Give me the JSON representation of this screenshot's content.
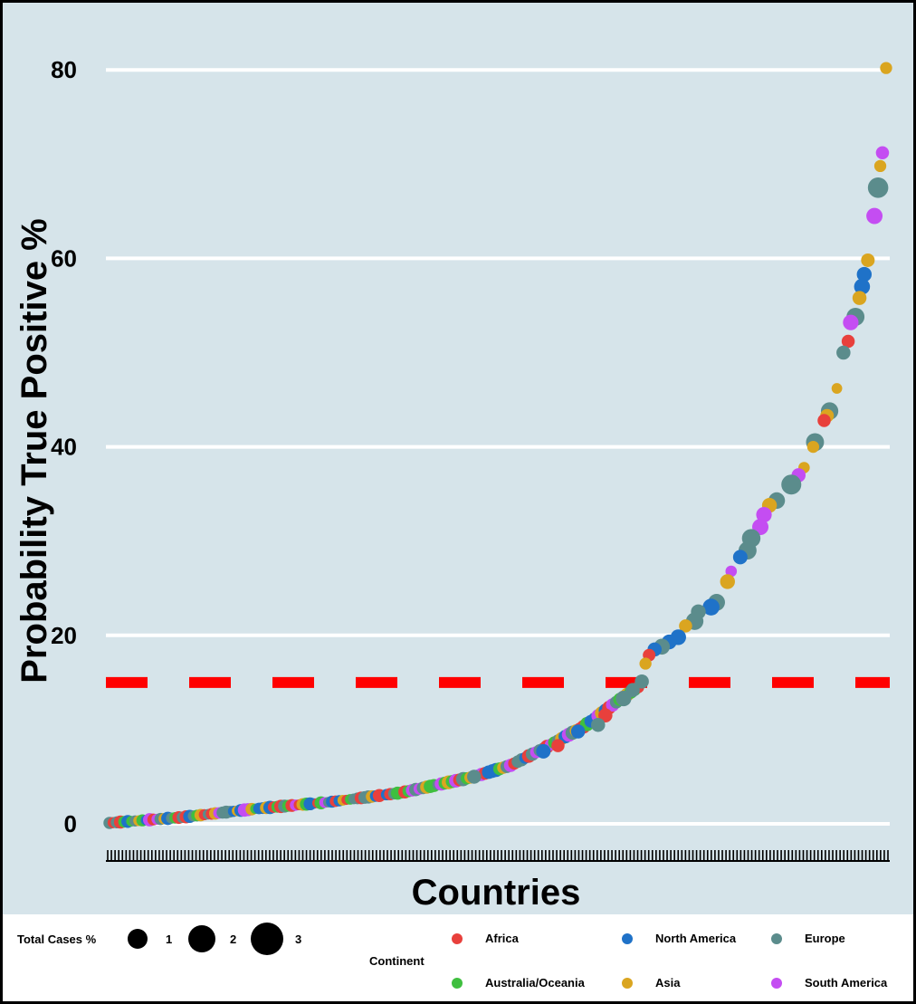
{
  "chart_data": {
    "type": "scatter",
    "title": "",
    "xlabel": "Countries",
    "ylabel": "Probability True Positive %",
    "ylim": [
      -3,
      85
    ],
    "yticks": [
      0,
      20,
      40,
      60,
      80
    ],
    "grid": true,
    "x_tick_labels_visible": false,
    "reference_line": {
      "y": 15,
      "color": "#ff0000",
      "style": "dashed"
    },
    "size_legend": {
      "title": "Total Cases %",
      "values": [
        1,
        2,
        3
      ]
    },
    "color_legend": {
      "title": "Continent",
      "entries": [
        {
          "name": "Africa",
          "color": "#e8403c"
        },
        {
          "name": "North America",
          "color": "#1f72c8"
        },
        {
          "name": "Europe",
          "color": "#5b8c8c"
        },
        {
          "name": "Australia/Oceania",
          "color": "#3fbf3f"
        },
        {
          "name": "Asia",
          "color": "#daa520"
        },
        {
          "name": "South America",
          "color": "#c44df2"
        }
      ]
    },
    "curve_control_points": [
      [
        0,
        0.1
      ],
      [
        20,
        0.7
      ],
      [
        40,
        1.6
      ],
      [
        60,
        2.3
      ],
      [
        80,
        3.3
      ],
      [
        100,
        5.0
      ],
      [
        110,
        6.2
      ],
      [
        120,
        8.2
      ],
      [
        130,
        10.3
      ],
      [
        140,
        13.2
      ],
      [
        145,
        14.5
      ],
      [
        150,
        17.5
      ],
      [
        155,
        18.6
      ],
      [
        160,
        19.4
      ],
      [
        165,
        21.0
      ],
      [
        170,
        23.0
      ],
      [
        175,
        26.5
      ],
      [
        180,
        30.5
      ],
      [
        185,
        34.0
      ],
      [
        190,
        36.5
      ],
      [
        195,
        40.5
      ],
      [
        198,
        44.0
      ],
      [
        200,
        50.0
      ],
      [
        203,
        53.5
      ],
      [
        206,
        56.5
      ],
      [
        208,
        60.0
      ],
      [
        210,
        64.5
      ],
      [
        211,
        68.0
      ],
      [
        212,
        71.0
      ],
      [
        213,
        80.2
      ]
    ],
    "highlighted_points": [
      {
        "x": 213,
        "y": 80.2,
        "continent": "Asia",
        "size": 0.4
      },
      {
        "x": 212,
        "y": 71.2,
        "continent": "South America",
        "size": 0.6
      },
      {
        "x": 211.4,
        "y": 69.8,
        "continent": "Asia",
        "size": 0.4
      },
      {
        "x": 210.8,
        "y": 67.5,
        "continent": "Europe",
        "size": 3.0
      },
      {
        "x": 209.8,
        "y": 64.5,
        "continent": "South America",
        "size": 1.4
      },
      {
        "x": 208,
        "y": 59.8,
        "continent": "Asia",
        "size": 0.7
      },
      {
        "x": 207,
        "y": 58.3,
        "continent": "North America",
        "size": 1.0
      },
      {
        "x": 206.4,
        "y": 57.0,
        "continent": "North America",
        "size": 1.3
      },
      {
        "x": 205.7,
        "y": 55.8,
        "continent": "Asia",
        "size": 0.8
      },
      {
        "x": 204.6,
        "y": 53.8,
        "continent": "Europe",
        "size": 2.0
      },
      {
        "x": 203.3,
        "y": 53.2,
        "continent": "South America",
        "size": 1.2
      },
      {
        "x": 202.6,
        "y": 51.2,
        "continent": "Africa",
        "size": 0.6
      },
      {
        "x": 201.3,
        "y": 50.0,
        "continent": "Europe",
        "size": 0.8
      },
      {
        "x": 199.5,
        "y": 46.2,
        "continent": "Asia",
        "size": 0.2
      },
      {
        "x": 197.5,
        "y": 43.8,
        "continent": "Europe",
        "size": 1.8
      },
      {
        "x": 196.8,
        "y": 43.3,
        "continent": "Asia",
        "size": 0.7
      },
      {
        "x": 196.0,
        "y": 42.8,
        "continent": "Africa",
        "size": 0.6
      },
      {
        "x": 193.5,
        "y": 40.5,
        "continent": "Europe",
        "size": 2.0
      },
      {
        "x": 193.0,
        "y": 40.0,
        "continent": "Asia",
        "size": 0.4
      },
      {
        "x": 190.5,
        "y": 37.8,
        "continent": "Asia",
        "size": 0.3
      },
      {
        "x": 189.0,
        "y": 37.0,
        "continent": "South America",
        "size": 0.8
      },
      {
        "x": 187.0,
        "y": 36.0,
        "continent": "Europe",
        "size": 2.8
      },
      {
        "x": 183.0,
        "y": 34.3,
        "continent": "Europe",
        "size": 1.5
      },
      {
        "x": 181.0,
        "y": 33.8,
        "continent": "Asia",
        "size": 1.0
      },
      {
        "x": 179.5,
        "y": 32.8,
        "continent": "South America",
        "size": 1.2
      },
      {
        "x": 178.5,
        "y": 31.5,
        "continent": "South America",
        "size": 1.4
      },
      {
        "x": 176.0,
        "y": 30.3,
        "continent": "Europe",
        "size": 2.2
      },
      {
        "x": 175.0,
        "y": 29.0,
        "continent": "Europe",
        "size": 2.0
      },
      {
        "x": 173.0,
        "y": 28.3,
        "continent": "North America",
        "size": 0.9
      },
      {
        "x": 170.5,
        "y": 26.8,
        "continent": "South America",
        "size": 0.3
      },
      {
        "x": 169.5,
        "y": 25.7,
        "continent": "Asia",
        "size": 1.0
      },
      {
        "x": 166.5,
        "y": 23.5,
        "continent": "Europe",
        "size": 1.6
      },
      {
        "x": 165.0,
        "y": 23.0,
        "continent": "North America",
        "size": 1.6
      },
      {
        "x": 161.5,
        "y": 22.5,
        "continent": "Europe",
        "size": 1.0
      },
      {
        "x": 160.5,
        "y": 21.5,
        "continent": "Europe",
        "size": 1.8
      },
      {
        "x": 158.0,
        "y": 21.0,
        "continent": "Asia",
        "size": 0.6
      },
      {
        "x": 156.0,
        "y": 19.8,
        "continent": "North America",
        "size": 1.2
      },
      {
        "x": 153.5,
        "y": 19.3,
        "continent": "North America",
        "size": 1.0
      },
      {
        "x": 151.5,
        "y": 18.8,
        "continent": "Europe",
        "size": 1.3
      },
      {
        "x": 149.5,
        "y": 18.5,
        "continent": "North America",
        "size": 0.8
      },
      {
        "x": 148.0,
        "y": 17.9,
        "continent": "Africa",
        "size": 0.5
      },
      {
        "x": 147.0,
        "y": 17.0,
        "continent": "Asia",
        "size": 0.4
      },
      {
        "x": 143.5,
        "y": 14.2,
        "continent": "Europe",
        "size": 0.8
      },
      {
        "x": 141.0,
        "y": 13.3,
        "continent": "Europe",
        "size": 1.2
      },
      {
        "x": 136.0,
        "y": 11.5,
        "continent": "Africa",
        "size": 0.8
      },
      {
        "x": 134.0,
        "y": 10.5,
        "continent": "Europe",
        "size": 0.8
      },
      {
        "x": 128.5,
        "y": 9.8,
        "continent": "North America",
        "size": 0.8
      },
      {
        "x": 123.0,
        "y": 8.3,
        "continent": "Africa",
        "size": 0.6
      },
      {
        "x": 119.0,
        "y": 7.7,
        "continent": "North America",
        "size": 0.9
      },
      {
        "x": 100.0,
        "y": 5.0,
        "continent": "Europe",
        "size": 0.8
      }
    ],
    "x_tick_count": 213
  }
}
